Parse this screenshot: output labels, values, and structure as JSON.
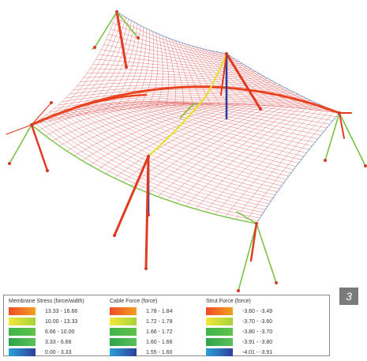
{
  "figure_number": "3",
  "legend": {
    "groups": [
      {
        "title": "Membrane Stress (force/width)",
        "ranges": [
          "13.33 - 16.66",
          "10.00 - 13.33",
          "6.66 - 10.00",
          "3.33 - 6.66",
          "0.00 - 3.33"
        ]
      },
      {
        "title": "Cable Force (force)",
        "ranges": [
          "1.78 - 1.84",
          "1.72 - 1.78",
          "1.66 - 1.72",
          "1.60 - 1.66",
          "1.55 - 1.60"
        ]
      },
      {
        "title": "Strut Force (force)",
        "ranges": [
          "-3.60 - -3.49",
          "-3.70 - -3.60",
          "-3.80 - -3.70",
          "-3.91 - -3.80",
          "-4.01 - -3.91"
        ]
      }
    ],
    "swatch_colors": [
      [
        "#f04a28",
        "#f0a020"
      ],
      [
        "#f2e838",
        "#a8d23a"
      ],
      [
        "#3fb44a",
        "#5fc24a"
      ],
      [
        "#2ea44a",
        "#5cc05a"
      ],
      [
        "#2aa1d8",
        "#2f3f9a"
      ]
    ]
  },
  "colors": {
    "membrane_mesh": "#e06060",
    "edge_blue": "#4a8ed0",
    "cable_high": "#e8431e",
    "cable_mid": "#e8e030",
    "strut_red": "#e23a20",
    "strut_green": "#7cc242",
    "strut_blue": "#2a3c9c",
    "node": "#d33a2a"
  }
}
